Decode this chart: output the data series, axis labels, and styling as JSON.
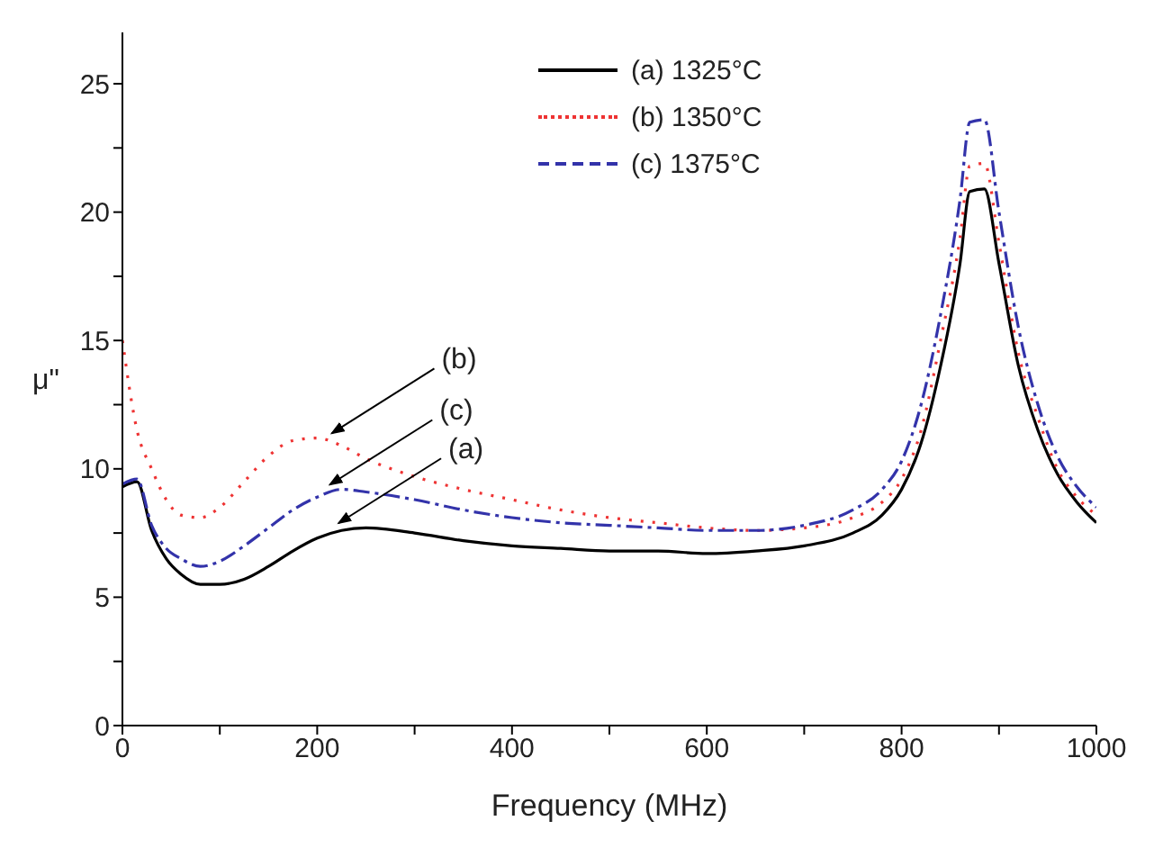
{
  "chart_data": {
    "type": "line",
    "xlabel": "Frequency (MHz)",
    "ylabel": "μ\"",
    "xlim": [
      0,
      1000
    ],
    "ylim": [
      0,
      27
    ],
    "xticks": [
      0,
      {
        "value": 100,
        "label": null
      },
      200,
      {
        "value": 300,
        "label": null
      },
      400,
      {
        "value": 500,
        "label": null
      },
      600,
      {
        "value": 700,
        "label": null
      },
      800,
      {
        "value": 900,
        "label": null
      },
      1000
    ],
    "yticks": [
      0,
      {
        "value": 2.5,
        "label": null
      },
      5,
      {
        "value": 7.5,
        "label": null
      },
      10,
      {
        "value": 12.5,
        "label": null
      },
      15,
      {
        "value": 17.5,
        "label": null
      },
      20,
      {
        "value": 22.5,
        "label": null
      },
      25
    ],
    "grid": false,
    "legend": "top",
    "marker": "none",
    "x": [
      0,
      15,
      30,
      45,
      60,
      80,
      100,
      125,
      150,
      175,
      200,
      225,
      250,
      300,
      350,
      400,
      450,
      500,
      550,
      600,
      650,
      700,
      750,
      780,
      800,
      820,
      840,
      860,
      870,
      885,
      900,
      920,
      940,
      960,
      980,
      1000
    ],
    "series": [
      {
        "name": "(a) 1325°C",
        "color": "#000000",
        "line_style": "solid",
        "values": [
          9.3,
          9.5,
          7.6,
          6.5,
          5.9,
          5.5,
          5.5,
          5.7,
          6.2,
          6.8,
          7.3,
          7.6,
          7.7,
          7.5,
          7.2,
          7.0,
          6.9,
          6.8,
          6.8,
          6.7,
          6.8,
          7.0,
          7.5,
          8.2,
          9.2,
          11,
          14,
          18,
          20.8,
          20.9,
          18,
          14,
          11.5,
          9.8,
          8.7,
          7.9
        ]
      },
      {
        "name": "(b) 1350°C",
        "color": "#ee3333",
        "line_style": "dotted",
        "values": [
          15,
          11.5,
          10,
          8.8,
          8.2,
          8.1,
          8.5,
          9.5,
          10.5,
          11.1,
          11.2,
          10.9,
          10.4,
          9.7,
          9.2,
          8.8,
          8.4,
          8.1,
          7.9,
          7.7,
          7.6,
          7.7,
          8.1,
          8.7,
          9.6,
          11.5,
          15,
          19,
          21.8,
          21.9,
          18.8,
          14.5,
          12,
          10,
          8.9,
          8.2
        ]
      },
      {
        "name": "(c) 1375°C",
        "color": "#3333aa",
        "line_style": "dashed",
        "values": [
          9.4,
          9.6,
          7.8,
          6.9,
          6.5,
          6.2,
          6.4,
          7.0,
          7.7,
          8.4,
          8.9,
          9.2,
          9.1,
          8.8,
          8.4,
          8.1,
          7.9,
          7.8,
          7.7,
          7.6,
          7.6,
          7.8,
          8.4,
          9.2,
          10.3,
          12.5,
          16,
          20.5,
          23.5,
          23.6,
          20,
          15.5,
          12.5,
          10.5,
          9.3,
          8.5
        ]
      }
    ],
    "annotations": [
      {
        "text": "(b)",
        "x": 213,
        "y": 11.1
      },
      {
        "text": "(c)",
        "x": 211,
        "y": 9.1
      },
      {
        "text": "(a)",
        "x": 220,
        "y": 7.6
      }
    ]
  }
}
